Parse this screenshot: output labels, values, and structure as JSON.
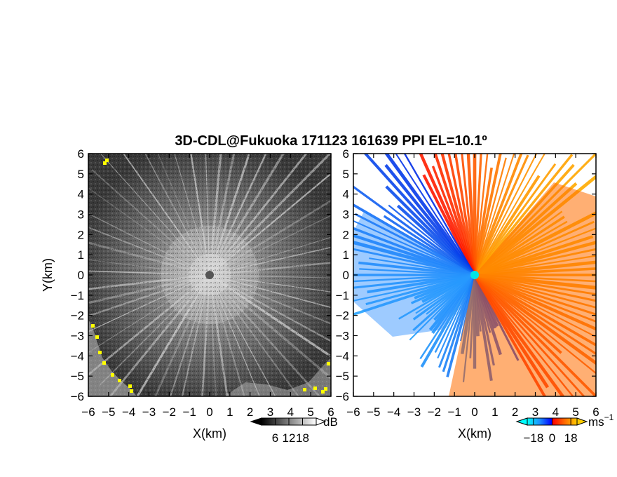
{
  "chart_data": [
    {
      "type": "heatmap",
      "title": "3D-CDL@Fukuoka 171123 161639 PPI EL=10.1º",
      "panel": "left",
      "xlabel": "X(km)",
      "ylabel": "Y(km)",
      "xlim": [
        -6,
        6
      ],
      "ylim": [
        -6,
        6
      ],
      "x_ticks": [
        "−6",
        "−5",
        "−4",
        "−3",
        "−2",
        "−1",
        "0",
        "1",
        "2",
        "3",
        "4",
        "5",
        "6"
      ],
      "y_ticks": [
        "6",
        "5",
        "4",
        "3",
        "2",
        "1",
        "0",
        "−1",
        "−2",
        "−3",
        "−4",
        "−5",
        "−6"
      ],
      "colorbar": {
        "unit": "dB",
        "range": [
          0,
          24
        ],
        "tick_values": [
          6,
          12,
          18
        ],
        "tick_labels": [
          "6",
          "12",
          "18"
        ],
        "colors": [
          "#000000",
          "#ffffff"
        ]
      },
      "features": {
        "highlight_color": "#ffff00",
        "center_marker_color": "#555555"
      }
    },
    {
      "type": "heatmap",
      "panel": "right",
      "xlabel": "X(km)",
      "xlim": [
        -6,
        6
      ],
      "ylim": [
        -6,
        6
      ],
      "x_ticks": [
        "−6",
        "−5",
        "−4",
        "−3",
        "−2",
        "−1",
        "0",
        "1",
        "2",
        "3",
        "4",
        "5",
        "6"
      ],
      "y_ticks": [
        "6",
        "5",
        "4",
        "3",
        "2",
        "1",
        "0",
        "−1",
        "−2",
        "−3",
        "−4",
        "−5",
        "−6"
      ],
      "colorbar": {
        "unit": "ms",
        "unit_exponent": "−1",
        "range": [
          -24,
          24
        ],
        "tick_values": [
          -18,
          0,
          18
        ],
        "tick_labels": [
          "−18",
          "0",
          "18"
        ],
        "colors": [
          "#00ffff",
          "#1e90ff",
          "#0000ff",
          "#ff0000",
          "#ff6a00",
          "#ffcc00"
        ]
      },
      "features": {
        "center_marker_color": "#00e5e5"
      }
    }
  ]
}
